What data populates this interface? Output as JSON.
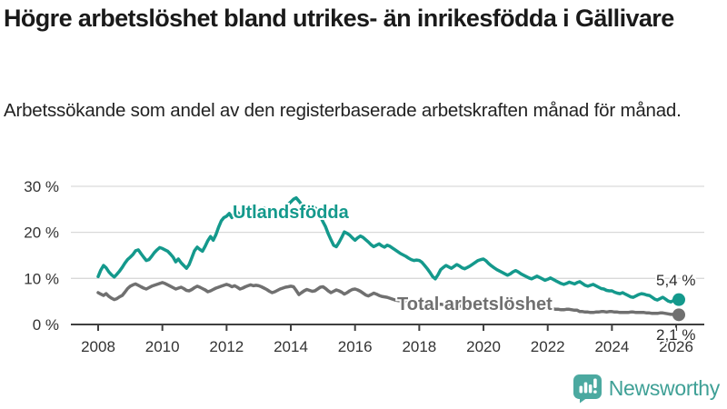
{
  "header": {
    "title": "Högre arbetslöshet bland utrikes- än inrikesfödda i Gällivare",
    "subtitle": "Arbetssökande som andel av den registerbaserade arbetskraften månad för månad."
  },
  "footer": {
    "brand": "Newsworthy"
  },
  "colors": {
    "foreign_born_line": "#14998c",
    "total_line": "#707070",
    "gridline": "#d9d9d9",
    "axis": "#3f3f3f",
    "brand_teal": "#4ba9a0"
  },
  "chart_data": {
    "type": "line",
    "title": "Högre arbetslöshet bland utrikes- än inrikesfödda i Gällivare",
    "subtitle": "Arbetssökande som andel av den registerbaserade arbetskraften månad för månad.",
    "frequency": "monthly",
    "x_start": "2008-01",
    "x_end": "2026-02",
    "x_tick_years": [
      2008,
      2010,
      2012,
      2014,
      2016,
      2018,
      2020,
      2022,
      2024,
      2026
    ],
    "y_ticks": [
      0,
      10,
      20,
      30
    ],
    "y_tick_labels": [
      "0 %",
      "10 %",
      "20 %",
      "30 %"
    ],
    "ylim": [
      0,
      33
    ],
    "grid": "horizontal",
    "legend_position": "inline-labels",
    "series": [
      {
        "name": "Utlandsfödda",
        "color": "#14998c",
        "end_label": "5,4 %",
        "end_value": 5.4,
        "values": [
          10.4,
          11.8,
          12.8,
          12.3,
          11.4,
          10.8,
          10.3,
          10.9,
          11.6,
          12.4,
          13.3,
          14.1,
          14.6,
          15.2,
          16.0,
          16.2,
          15.4,
          14.6,
          13.9,
          14.1,
          14.8,
          15.6,
          16.2,
          16.7,
          16.5,
          16.2,
          15.9,
          15.3,
          14.6,
          13.6,
          14.2,
          13.4,
          12.8,
          12.2,
          13.0,
          14.5,
          16.0,
          16.8,
          16.3,
          15.9,
          17.0,
          18.2,
          19.1,
          18.3,
          19.5,
          21.1,
          22.5,
          23.2,
          23.5,
          24.1,
          23.2,
          24.7,
          24.4,
          23.8,
          23.4,
          23.9,
          24.6,
          25.1,
          24.4,
          23.8,
          24.2,
          24.8,
          25.3,
          24.7,
          24.1,
          23.6,
          23.2,
          23.8,
          24.5,
          25.0,
          25.6,
          26.1,
          26.6,
          27.2,
          27.5,
          26.8,
          26.1,
          25.4,
          24.8,
          25.3,
          25.9,
          25.4,
          24.6,
          23.5,
          22.3,
          21.2,
          19.7,
          18.4,
          17.2,
          16.9,
          17.8,
          18.9,
          20.1,
          19.8,
          19.4,
          18.8,
          18.3,
          18.8,
          19.2,
          18.9,
          18.4,
          17.9,
          17.3,
          16.9,
          17.2,
          17.5,
          17.1,
          16.8,
          17.2,
          17.0,
          16.6,
          16.2,
          15.8,
          15.4,
          15.1,
          14.8,
          14.4,
          14.1,
          13.9,
          14.0,
          13.9,
          13.5,
          12.8,
          12.1,
          11.3,
          10.4,
          9.9,
          10.8,
          11.9,
          12.4,
          12.8,
          12.5,
          12.2,
          12.6,
          13.0,
          12.7,
          12.3,
          12.1,
          12.4,
          12.7,
          13.1,
          13.5,
          13.9,
          14.1,
          14.2,
          13.8,
          13.2,
          12.7,
          12.3,
          11.9,
          11.6,
          11.3,
          11.0,
          10.7,
          11.0,
          11.4,
          11.7,
          11.4,
          11.0,
          10.7,
          10.4,
          10.1,
          9.9,
          10.2,
          10.5,
          10.2,
          9.9,
          9.6,
          9.8,
          10.1,
          9.8,
          9.5,
          9.2,
          8.9,
          8.7,
          8.9,
          9.2,
          9.0,
          8.8,
          9.1,
          9.3,
          8.9,
          8.5,
          8.3,
          8.5,
          8.7,
          8.4,
          8.1,
          7.8,
          7.7,
          7.4,
          7.3,
          7.3,
          7.0,
          6.8,
          6.7,
          6.9,
          6.6,
          6.3,
          6.0,
          5.9,
          6.2,
          6.5,
          6.7,
          6.6,
          6.4,
          6.3,
          5.9,
          5.5,
          5.3,
          5.6,
          5.9,
          5.5,
          5.1,
          4.9,
          5.2,
          5.6,
          5.4
        ]
      },
      {
        "name": "Total arbetslöshet",
        "color": "#707070",
        "end_label": "2,1 %",
        "end_value": 2.1,
        "values": [
          6.9,
          6.6,
          6.3,
          6.7,
          6.1,
          5.7,
          5.4,
          5.6,
          6.0,
          6.3,
          7.0,
          7.8,
          8.3,
          8.6,
          8.8,
          8.5,
          8.2,
          7.9,
          7.7,
          8.0,
          8.3,
          8.5,
          8.7,
          8.9,
          9.1,
          8.9,
          8.6,
          8.3,
          8.0,
          7.7,
          7.9,
          8.1,
          7.8,
          7.4,
          7.3,
          7.6,
          8.0,
          8.3,
          8.1,
          7.8,
          7.5,
          7.1,
          7.3,
          7.6,
          7.9,
          8.1,
          8.3,
          8.5,
          8.7,
          8.5,
          8.2,
          8.4,
          8.1,
          7.7,
          7.9,
          8.2,
          8.4,
          8.6,
          8.4,
          8.5,
          8.4,
          8.2,
          7.9,
          7.6,
          7.2,
          6.9,
          7.1,
          7.4,
          7.7,
          7.9,
          8.1,
          8.2,
          8.3,
          8.2,
          7.4,
          6.5,
          6.9,
          7.3,
          7.6,
          7.4,
          7.2,
          7.3,
          7.7,
          8.1,
          8.2,
          7.8,
          7.3,
          6.9,
          7.2,
          7.5,
          7.3,
          7.0,
          6.6,
          6.9,
          7.3,
          7.6,
          7.7,
          7.5,
          7.2,
          6.8,
          6.4,
          6.2,
          6.5,
          6.8,
          6.6,
          6.3,
          6.1,
          6.0,
          5.9,
          5.7,
          5.5,
          5.3,
          5.2,
          5.1,
          5.0,
          5.1,
          5.2,
          5.1,
          5.0,
          4.9,
          4.8,
          4.7,
          4.5,
          4.3,
          4.2,
          4.1,
          4.2,
          4.3,
          4.4,
          4.3,
          4.2,
          4.2,
          4.3,
          4.2,
          4.1,
          4.0,
          3.9,
          3.9,
          4.0,
          4.1,
          4.2,
          4.1,
          4.1,
          4.2,
          4.3,
          4.4,
          4.6,
          4.8,
          4.7,
          4.6,
          4.5,
          4.4,
          4.4,
          4.3,
          4.3,
          4.2,
          4.2,
          4.1,
          4.0,
          3.9,
          3.8,
          3.7,
          3.7,
          3.8,
          3.8,
          3.7,
          3.6,
          3.6,
          3.5,
          3.5,
          3.4,
          3.3,
          3.3,
          3.2,
          3.2,
          3.3,
          3.3,
          3.2,
          3.1,
          3.1,
          2.8,
          2.8,
          2.7,
          2.7,
          2.6,
          2.6,
          2.7,
          2.7,
          2.8,
          2.8,
          2.7,
          2.8,
          2.8,
          2.7,
          2.7,
          2.6,
          2.6,
          2.6,
          2.6,
          2.7,
          2.7,
          2.6,
          2.6,
          2.6,
          2.6,
          2.5,
          2.5,
          2.4,
          2.4,
          2.4,
          2.5,
          2.5,
          2.4,
          2.3,
          2.2,
          2.2,
          2.2,
          2.1
        ]
      }
    ]
  }
}
